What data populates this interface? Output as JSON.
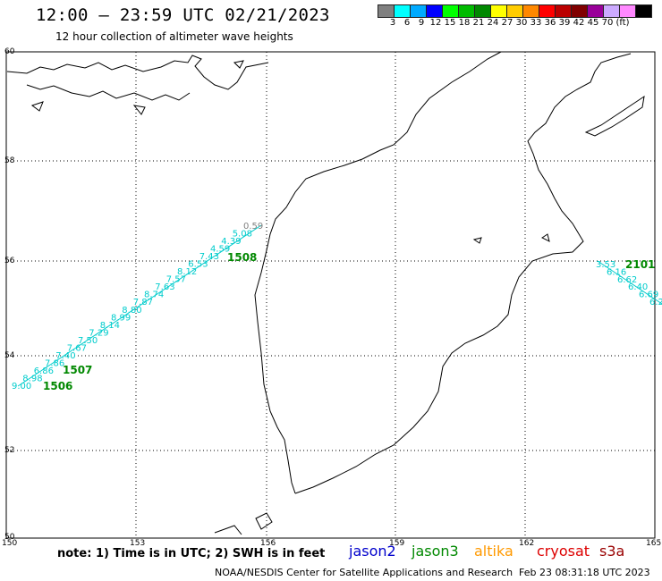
{
  "header": {
    "title": "12:00 — 23:59 UTC 02/21/2023",
    "subtitle": "12 hour collection of altimeter wave heights"
  },
  "legend": {
    "colors": [
      "#808080",
      "#00ffff",
      "#00aaff",
      "#0000ff",
      "#00ff00",
      "#00bb00",
      "#008800",
      "#ffff00",
      "#ffcc00",
      "#ff8800",
      "#ff0000",
      "#bb0000",
      "#800000",
      "#990099",
      "#ccaaff",
      "#ff88ff",
      "#000000"
    ],
    "ticks": [
      "3",
      "6",
      "9",
      "12",
      "15",
      "18",
      "21",
      "24",
      "27",
      "30",
      "33",
      "36",
      "39",
      "42",
      "45",
      "70"
    ],
    "unit": "(ft)"
  },
  "axes": {
    "lat_labels": [
      "60",
      "58",
      "56",
      "54",
      "52",
      "50"
    ],
    "lon_labels": [
      "150",
      "153",
      "156",
      "159",
      "162",
      "165"
    ]
  },
  "track_labels": {
    "west_track_heights": [
      "9.00",
      "8.98",
      "6.86",
      "7.86",
      "7.40",
      "7.67",
      "7.50",
      "7.29",
      "8.14",
      "8.99",
      "8.80",
      "7.87",
      "8.74",
      "7.63",
      "7.57",
      "8.12",
      "6.53",
      "7.43",
      "4.59",
      "4.39",
      "5.08",
      "0.59"
    ],
    "west_pass_ids": [
      "1506",
      "1507",
      "1508"
    ],
    "east_track_heights": [
      "3.53",
      "6.16",
      "6.62",
      "6.40",
      "6.69",
      "6.2"
    ],
    "east_pass_id": "2101"
  },
  "colors": {
    "cyan_track": "#00cccc",
    "gray_label": "#808080",
    "jason3_green": "#008800",
    "jason2_blue": "#0000cc",
    "altika_orange": "#ff9900",
    "cryosat_red": "#dd0000",
    "s3a_red": "#990000"
  },
  "footer": {
    "note": "note: 1) Time is in UTC; 2) SWH is in feet",
    "satellites": [
      "jason2",
      "jason3",
      "altika",
      "cryosat",
      "s3a"
    ],
    "credit": "NOAA/NESDIS Center for Satellite Applications and Research",
    "generated": "Feb 23 08:31:18 UTC 2023"
  }
}
